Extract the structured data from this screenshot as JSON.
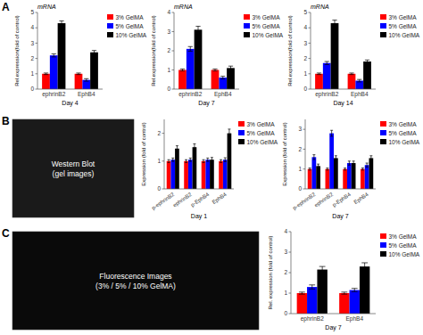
{
  "chart_data": [
    {
      "type": "bar",
      "title": "mRNA",
      "annotations": [
        "A"
      ],
      "categories": [
        "ephrinB2",
        "EphB4"
      ],
      "series": [
        {
          "name": "3% GelMA",
          "color": "#FF0000",
          "values": [
            1.0,
            1.0
          ],
          "errors": [
            0.05,
            0.05
          ]
        },
        {
          "name": "5% GelMA",
          "color": "#0000FF",
          "values": [
            2.2,
            0.6
          ],
          "errors": [
            0.1,
            0.08
          ]
        },
        {
          "name": "10% GelMA",
          "color": "#000000",
          "values": [
            4.3,
            2.4
          ],
          "errors": [
            0.15,
            0.12
          ]
        }
      ],
      "x_label": "Day 4",
      "y_label": "Rel.expression(fold of control)",
      "ylim": [
        0,
        5
      ],
      "yticks": [
        0,
        1,
        2,
        3,
        4,
        5
      ],
      "grid": false,
      "legend": "right"
    },
    {
      "type": "bar",
      "title": "mRNA",
      "categories": [
        "ephrinB2",
        "EphB4"
      ],
      "series": [
        {
          "name": "3% GelMA",
          "color": "#FF0000",
          "values": [
            1.0,
            1.0
          ],
          "errors": [
            0.05,
            0.05
          ]
        },
        {
          "name": "5% GelMA",
          "color": "#0000FF",
          "values": [
            2.1,
            0.6
          ],
          "errors": [
            0.12,
            0.07
          ]
        },
        {
          "name": "10% GelMA",
          "color": "#000000",
          "values": [
            3.1,
            1.1
          ],
          "errors": [
            0.18,
            0.1
          ]
        }
      ],
      "x_label": "Day 7",
      "y_label": "Rel.expression(fold of control)",
      "ylim": [
        0,
        4
      ],
      "yticks": [
        0,
        1,
        2,
        3,
        4
      ],
      "grid": false,
      "legend": "right"
    },
    {
      "type": "bar",
      "title": "mRNA",
      "categories": [
        "ephrinB2",
        "EphB4"
      ],
      "series": [
        {
          "name": "3% GelMA",
          "color": "#FF0000",
          "values": [
            1.0,
            1.0
          ],
          "errors": [
            0.05,
            0.05
          ]
        },
        {
          "name": "5% GelMA",
          "color": "#0000FF",
          "values": [
            1.7,
            0.55
          ],
          "errors": [
            0.1,
            0.08
          ]
        },
        {
          "name": "10% GelMA",
          "color": "#000000",
          "values": [
            4.3,
            1.8
          ],
          "errors": [
            0.2,
            0.1
          ]
        }
      ],
      "x_label": "Day 14",
      "y_label": "Rel.expression(fold of control)",
      "ylim": [
        0,
        5
      ],
      "yticks": [
        0,
        1,
        2,
        3,
        4,
        5
      ],
      "grid": false,
      "legend": "right"
    },
    {
      "type": "image",
      "title": "Western Blot\n(gel images)",
      "annotations": [
        "B"
      ],
      "color": "#1a1a1a"
    },
    {
      "type": "bar",
      "categories": [
        "p-ephrinB2",
        "ephrinB2",
        "p-EphB4",
        "EphB4"
      ],
      "series": [
        {
          "name": "3% GelMA",
          "color": "#FF0000",
          "values": [
            1.0,
            1.0,
            1.0,
            1.0
          ],
          "errors": [
            0.05,
            0.05,
            0.05,
            0.05
          ]
        },
        {
          "name": "5% GelMA",
          "color": "#0000FF",
          "values": [
            1.05,
            1.05,
            1.05,
            1.05
          ],
          "errors": [
            0.06,
            0.06,
            0.06,
            0.07
          ]
        },
        {
          "name": "10% GelMA",
          "color": "#000000",
          "values": [
            1.45,
            1.5,
            1.05,
            2.0
          ],
          "errors": [
            0.1,
            0.12,
            0.08,
            0.15
          ]
        }
      ],
      "x_label": "Day 1",
      "y_label": "Expression (fold of control)",
      "ylim": [
        0,
        2.5
      ],
      "yticks": [
        0,
        1,
        2
      ],
      "grid": false,
      "legend": "right"
    },
    {
      "type": "bar",
      "categories": [
        "p-ephrinB2",
        "ephrinB2",
        "p-EphB4",
        "EphB4"
      ],
      "series": [
        {
          "name": "3% GelMA",
          "color": "#FF0000",
          "values": [
            1.0,
            1.0,
            1.0,
            1.0
          ],
          "errors": [
            0.05,
            0.05,
            0.05,
            0.05
          ]
        },
        {
          "name": "5% GelMA",
          "color": "#0000FF",
          "values": [
            1.6,
            2.8,
            1.3,
            1.2
          ],
          "errors": [
            0.12,
            0.15,
            0.1,
            0.1
          ]
        },
        {
          "name": "10% GelMA",
          "color": "#000000",
          "values": [
            1.15,
            1.55,
            1.3,
            1.55
          ],
          "errors": [
            0.1,
            0.12,
            0.1,
            0.12
          ]
        }
      ],
      "x_label": "Day 7",
      "y_label": "Expression (fold of control)",
      "ylim": [
        0,
        3.5
      ],
      "yticks": [
        0,
        1,
        2,
        3
      ],
      "grid": false,
      "legend": "right"
    },
    {
      "type": "image",
      "title": "Fluorescence Images\n(3% / 5% / 10% GelMA)",
      "annotations": [
        "C"
      ],
      "color": "#0a0a0a"
    },
    {
      "type": "bar",
      "categories": [
        "ephrinB2",
        "EphB4"
      ],
      "series": [
        {
          "name": "3% GelMA",
          "color": "#FF0000",
          "values": [
            1.0,
            1.0
          ],
          "errors": [
            0.05,
            0.05
          ]
        },
        {
          "name": "5% GelMA",
          "color": "#0000FF",
          "values": [
            1.3,
            1.15
          ],
          "errors": [
            0.1,
            0.08
          ]
        },
        {
          "name": "10% GelMA",
          "color": "#000000",
          "values": [
            2.15,
            2.3
          ],
          "errors": [
            0.15,
            0.18
          ]
        }
      ],
      "x_label": "Day 7",
      "y_label": "Rel. expression (fold of control)",
      "ylim": [
        0,
        4
      ],
      "yticks": [
        0,
        1,
        2,
        3,
        4
      ],
      "grid": false,
      "legend": "right"
    }
  ]
}
